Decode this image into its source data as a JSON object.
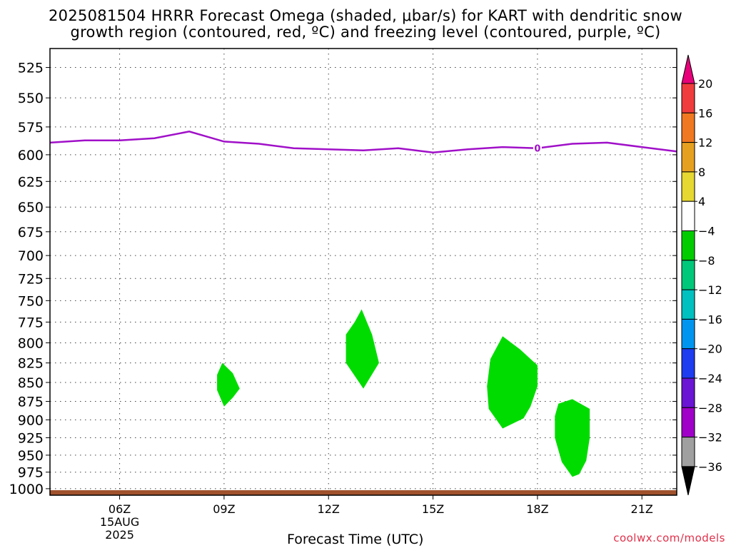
{
  "chart_data": {
    "type": "heatmap",
    "title_line1": "2025081504 HRRR Forecast Omega (shaded, μbar/s) for KART with dendritic snow",
    "title_line2": "growth region (contoured, red, ºC) and freezing level (contoured, purple, ºC)",
    "xlabel": "Forecast Time (UTC)",
    "x_ticks": [
      "06Z",
      "09Z",
      "12Z",
      "15Z",
      "18Z",
      "21Z"
    ],
    "x_hours": [
      6,
      9,
      12,
      15,
      18,
      21
    ],
    "x_date_lines": [
      "15AUG",
      "2025"
    ],
    "xlim": [
      4,
      22
    ],
    "y_ticks": [
      525,
      550,
      575,
      600,
      625,
      650,
      675,
      700,
      725,
      750,
      775,
      800,
      825,
      850,
      875,
      900,
      925,
      950,
      975,
      1000
    ],
    "ylim": [
      1010,
      510
    ],
    "y_scale": "log",
    "grid": true,
    "freezing_level": {
      "label": "0",
      "color": "#a010c8",
      "points": [
        [
          4,
          589
        ],
        [
          5,
          587
        ],
        [
          6,
          587
        ],
        [
          7,
          585
        ],
        [
          8,
          579
        ],
        [
          9,
          588
        ],
        [
          10,
          590
        ],
        [
          11,
          594
        ],
        [
          12,
          595
        ],
        [
          13,
          596
        ],
        [
          14,
          594
        ],
        [
          15,
          598
        ],
        [
          16,
          595
        ],
        [
          17,
          593
        ],
        [
          18,
          594
        ],
        [
          19,
          590
        ],
        [
          20,
          589
        ],
        [
          21,
          593
        ],
        [
          22,
          597
        ]
      ]
    },
    "omega_regions": [
      {
        "value_range": [
          -8,
          -4
        ],
        "color": "#00dc00",
        "points": [
          [
            8.95,
            825
          ],
          [
            9.25,
            838
          ],
          [
            9.45,
            858
          ],
          [
            9.25,
            870
          ],
          [
            9.0,
            882
          ],
          [
            8.8,
            860
          ],
          [
            8.8,
            840
          ]
        ]
      },
      {
        "value_range": [
          -8,
          -4
        ],
        "color": "#00dc00",
        "points": [
          [
            12.95,
            760
          ],
          [
            13.25,
            790
          ],
          [
            13.45,
            825
          ],
          [
            13.0,
            858
          ],
          [
            12.5,
            825
          ],
          [
            12.5,
            790
          ],
          [
            12.75,
            775
          ]
        ]
      },
      {
        "value_range": [
          -8,
          -4
        ],
        "color": "#00dc00",
        "points": [
          [
            17.0,
            792
          ],
          [
            17.5,
            808
          ],
          [
            18.0,
            828
          ],
          [
            18.0,
            855
          ],
          [
            17.8,
            882
          ],
          [
            17.6,
            898
          ],
          [
            17.0,
            912
          ],
          [
            16.6,
            885
          ],
          [
            16.55,
            855
          ],
          [
            16.65,
            820
          ]
        ]
      },
      {
        "value_range": [
          -8,
          -4
        ],
        "color": "#00dc00",
        "points": [
          [
            18.6,
            878
          ],
          [
            19.0,
            872
          ],
          [
            19.5,
            885
          ],
          [
            19.5,
            925
          ],
          [
            19.4,
            958
          ],
          [
            19.2,
            978
          ],
          [
            19.0,
            982
          ],
          [
            18.7,
            960
          ],
          [
            18.5,
            925
          ],
          [
            18.5,
            895
          ]
        ]
      }
    ],
    "surface_color": "#a0522d",
    "colorbar": {
      "labels": [
        "20",
        "16",
        "12",
        "8",
        "4",
        "−4",
        "−8",
        "−12",
        "−16",
        "−20",
        "−24",
        "−28",
        "−32",
        "−36"
      ],
      "colors": [
        "#e8007a",
        "#f03c3c",
        "#f07820",
        "#e6a020",
        "#e6d830",
        "#ffffff",
        "#00cc00",
        "#00c87a",
        "#00c0c0",
        "#0096f0",
        "#1e3cf0",
        "#6a14d4",
        "#a000c8",
        "#a0a0a0",
        "#000000"
      ]
    }
  },
  "credit": "coolwx.com/models"
}
